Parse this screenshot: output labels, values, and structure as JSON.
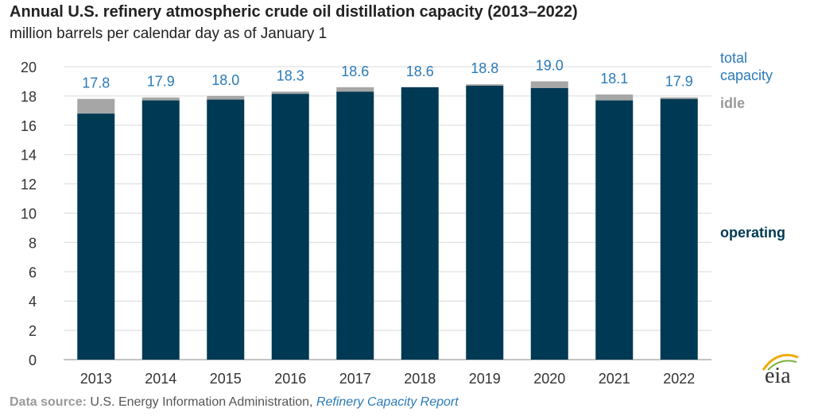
{
  "title": "Annual U.S. refinery atmospheric crude oil distillation capacity (2013–2022)",
  "subtitle": "million barrels per calendar day as of January 1",
  "source": {
    "label": "Data source:",
    "text": "U.S. Energy Information Administration,",
    "link": "Refinery Capacity Report"
  },
  "logo": "eia",
  "colors": {
    "operating": "#003953",
    "idle": "#a6a6a6",
    "total_label": "#2a7ab8"
  },
  "chart_data": {
    "type": "bar",
    "stacked": true,
    "categories": [
      "2013",
      "2014",
      "2015",
      "2016",
      "2017",
      "2018",
      "2019",
      "2020",
      "2021",
      "2022"
    ],
    "series": [
      {
        "name": "operating",
        "values": [
          16.8,
          17.7,
          17.75,
          18.15,
          18.3,
          18.6,
          18.7,
          18.55,
          17.7,
          17.8
        ]
      },
      {
        "name": "idle",
        "values": [
          1.0,
          0.2,
          0.25,
          0.15,
          0.3,
          0.0,
          0.1,
          0.45,
          0.4,
          0.1
        ]
      }
    ],
    "total_label": "total capacity",
    "totals": [
      "17.8",
      "17.9",
      "18.0",
      "18.3",
      "18.6",
      "18.6",
      "18.8",
      "19.0",
      "18.1",
      "17.9"
    ],
    "ylim": [
      0,
      20
    ],
    "yticks": [
      0,
      2,
      4,
      6,
      8,
      10,
      12,
      14,
      16,
      18,
      20
    ],
    "grid": true,
    "legend": "right, inline labels"
  }
}
